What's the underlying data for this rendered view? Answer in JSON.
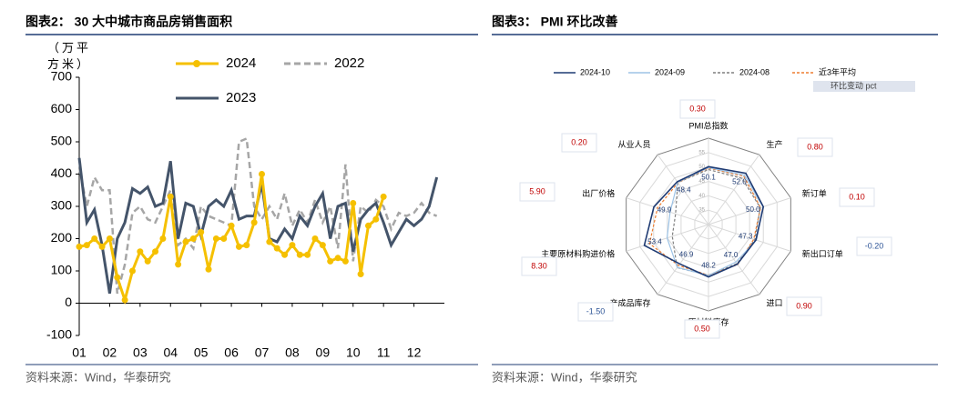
{
  "chart_data": [
    {
      "type": "line",
      "title": "图表2：  30 大中城市商品房销售面积",
      "y_label": "（万平方米）",
      "source": "资料来源：Wind，华泰研究",
      "x": [
        1,
        1.25,
        1.5,
        1.75,
        2,
        2.25,
        2.5,
        2.75,
        3,
        3.25,
        3.5,
        3.75,
        4,
        4.25,
        4.5,
        4.75,
        5,
        5.25,
        5.5,
        5.75,
        6,
        6.25,
        6.5,
        6.75,
        7,
        7.25,
        7.5,
        7.75,
        8,
        8.25,
        8.5,
        8.75,
        9,
        9.25,
        9.5,
        9.75,
        10,
        10.25,
        10.5,
        10.75,
        11,
        11.25,
        11.5,
        11.75,
        12,
        12.25,
        12.5,
        12.75
      ],
      "series": [
        {
          "name": "2024",
          "color": "#f5c000",
          "markers": true,
          "dash": false,
          "values": [
            175,
            180,
            200,
            175,
            200,
            80,
            10,
            100,
            160,
            130,
            160,
            200,
            330,
            120,
            190,
            200,
            220,
            105,
            200,
            200,
            240,
            175,
            180,
            250,
            400,
            190,
            170,
            150,
            180,
            150,
            150,
            200,
            180,
            130,
            140,
            130,
            310,
            90,
            240,
            260,
            330,
            null,
            null,
            null,
            null,
            null,
            null,
            null
          ]
        },
        {
          "name": "2022",
          "color": "#a6a6a6",
          "markers": false,
          "dash": true,
          "values": [
            420,
            300,
            390,
            350,
            350,
            30,
            120,
            280,
            300,
            260,
            250,
            300,
            350,
            180,
            200,
            170,
            300,
            270,
            260,
            250,
            240,
            500,
            510,
            300,
            260,
            300,
            260,
            340,
            240,
            290,
            250,
            320,
            250,
            300,
            170,
            430,
            130,
            300,
            280,
            320,
            300,
            230,
            280,
            270,
            280,
            310,
            280,
            270
          ]
        },
        {
          "name": "2023",
          "color": "#44546a",
          "markers": false,
          "dash": false,
          "values": [
            450,
            250,
            290,
            180,
            30,
            200,
            250,
            355,
            340,
            360,
            300,
            310,
            440,
            200,
            310,
            300,
            210,
            300,
            320,
            300,
            350,
            260,
            270,
            270,
            370,
            200,
            190,
            230,
            200,
            270,
            240,
            300,
            340,
            200,
            300,
            310,
            160,
            260,
            290,
            310,
            250,
            180,
            220,
            260,
            240,
            260,
            300,
            390
          ]
        }
      ],
      "xlim": [
        1,
        13
      ],
      "xticks": [
        {
          "value": 1,
          "label": "01"
        },
        {
          "value": 2,
          "label": "02"
        },
        {
          "value": 3,
          "label": "03"
        },
        {
          "value": 4,
          "label": "04"
        },
        {
          "value": 5,
          "label": "05"
        },
        {
          "value": 6,
          "label": "06"
        },
        {
          "value": 7,
          "label": "07"
        },
        {
          "value": 8,
          "label": "08"
        },
        {
          "value": 9,
          "label": "09"
        },
        {
          "value": 10,
          "label": "10"
        },
        {
          "value": 11,
          "label": "11"
        },
        {
          "value": 12,
          "label": "12"
        }
      ],
      "ylim": [
        -100,
        700
      ],
      "yticks": [
        -100,
        0,
        100,
        200,
        300,
        400,
        500,
        600,
        700
      ]
    },
    {
      "type": "radar",
      "title": "图表3：  PMI 环比改善",
      "source": "资料来源：Wind，华泰研究",
      "categories": [
        "PMI总指数",
        "生产",
        "新订单",
        "新出口订单",
        "进口",
        "原材料库存",
        "产成品库存",
        "主要原材料购进价格",
        "出厂价格",
        "从业人员"
      ],
      "series": [
        {
          "name": "2024-10",
          "color": "#1f3b73",
          "dash": false,
          "values": [
            50.1,
            52.0,
            50.0,
            47.3,
            47.0,
            48.2,
            46.9,
            53.4,
            49.9,
            48.4
          ],
          "value_labels": [
            "50.1",
            "52.0",
            "50.0",
            "47.3",
            "47.0",
            "48.2",
            "46.9",
            "53.4",
            "49.9",
            "48.4"
          ]
        },
        {
          "name": "2024-09",
          "color": "#9dc3e6",
          "dash": false,
          "values": [
            49.8,
            51.2,
            49.9,
            47.5,
            46.1,
            47.7,
            48.4,
            45.1,
            44.0,
            48.2
          ]
        },
        {
          "name": "2024-08",
          "color": "#7f7f7f",
          "dash": true,
          "values": [
            49.1,
            49.8,
            48.9,
            46.9,
            46.8,
            47.6,
            48.5,
            43.2,
            42.0,
            48.1
          ]
        },
        {
          "name": "近3年平均",
          "color": "#ed7d31",
          "dash": true,
          "values": [
            49.6,
            50.8,
            49.0,
            46.5,
            47.2,
            47.6,
            47.6,
            51.5,
            48.6,
            48.0
          ]
        }
      ],
      "changes": {
        "name": "环比变动 pct",
        "values": [
          0.3,
          0.8,
          0.1,
          -0.2,
          0.9,
          0.5,
          -1.5,
          8.3,
          5.9,
          0.2
        ],
        "value_labels": [
          "0.30",
          "0.80",
          "0.10",
          "-0.20",
          "0.90",
          "0.50",
          "-1.50",
          "8.30",
          "5.90",
          "0.20"
        ]
      },
      "rlim": [
        30,
        60
      ],
      "rticks": [
        35,
        40,
        45,
        50,
        55
      ]
    }
  ]
}
